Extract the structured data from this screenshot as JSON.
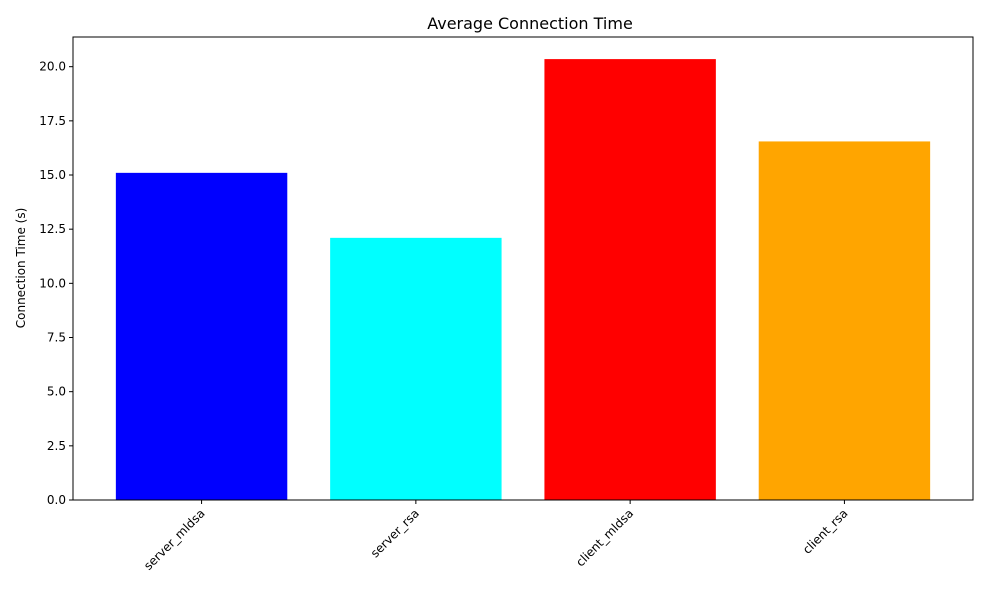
{
  "chart_data": {
    "type": "bar",
    "title": "Average Connection Time",
    "xlabel": "",
    "ylabel": "Connection Time (s)",
    "categories": [
      "server_mldsa",
      "server_rsa",
      "client_mldsa",
      "client_rsa"
    ],
    "values": [
      15.1,
      12.1,
      20.35,
      16.55
    ],
    "colors": [
      "#0000ff",
      "#00ffff",
      "#ff0000",
      "#ffa500"
    ],
    "ylim": [
      0,
      21.37
    ],
    "yticks": [
      "0.0",
      "2.5",
      "5.0",
      "7.5",
      "10.0",
      "12.5",
      "15.0",
      "17.5",
      "20.0"
    ],
    "ytick_values": [
      0,
      2.5,
      5,
      7.5,
      10,
      12.5,
      15,
      17.5,
      20
    ],
    "xtick_rotation_deg": 45,
    "grid": false,
    "legend": "none"
  }
}
